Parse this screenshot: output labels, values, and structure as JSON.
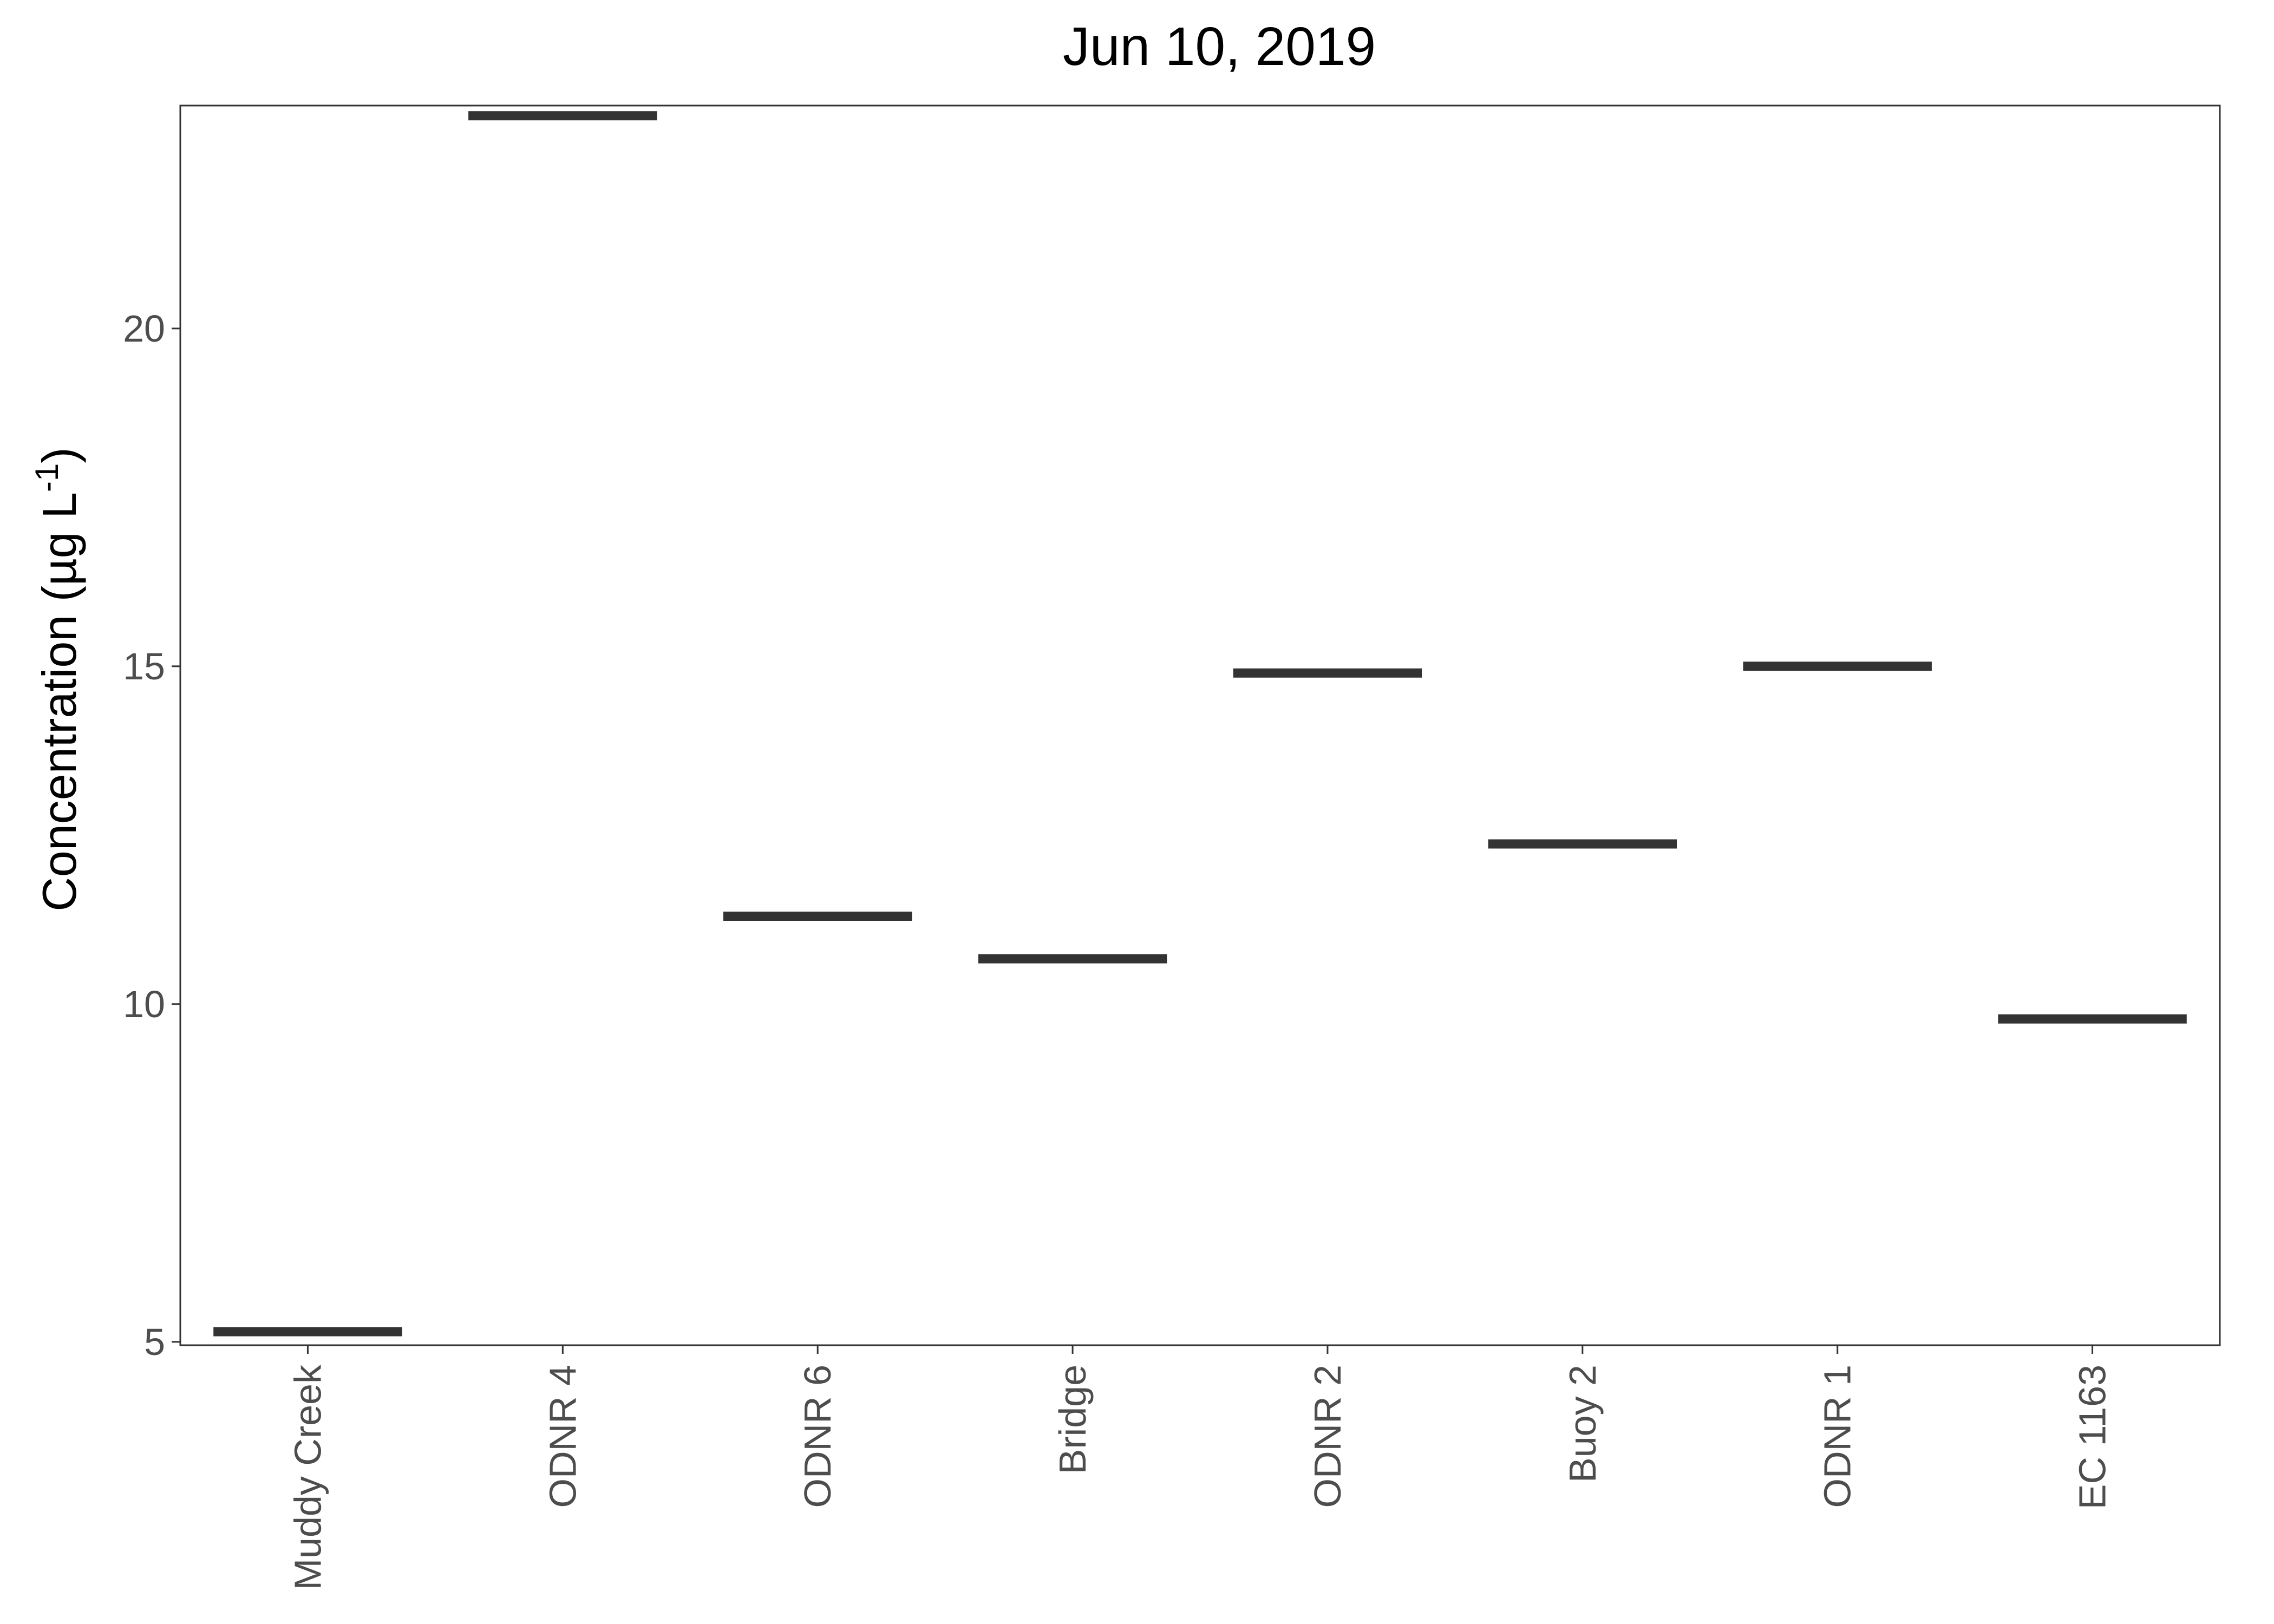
{
  "chart_data": {
    "type": "crossbar",
    "title": "Jun 10, 2019",
    "xlabel": "",
    "ylabel": "Concentration (µg L",
    "ylabel_superscript": "-1",
    "ylabel_suffix": ")",
    "categories": [
      "Muddy Creek",
      "ODNR 4",
      "ODNR 6",
      "Bridge",
      "ODNR 2",
      "Buoy 2",
      "ODNR 1",
      "EC 1163"
    ],
    "values": [
      5.15,
      23.15,
      11.3,
      10.67,
      14.9,
      12.37,
      15.0,
      9.78
    ],
    "ylim": [
      4.95,
      23.3
    ],
    "yticks": [
      5,
      10,
      15,
      20
    ],
    "ytick_labels": [
      "5",
      "10",
      "15",
      "20"
    ],
    "grid": false,
    "legend": "none",
    "mark_color": "#333333",
    "axis_color": "#333333"
  }
}
